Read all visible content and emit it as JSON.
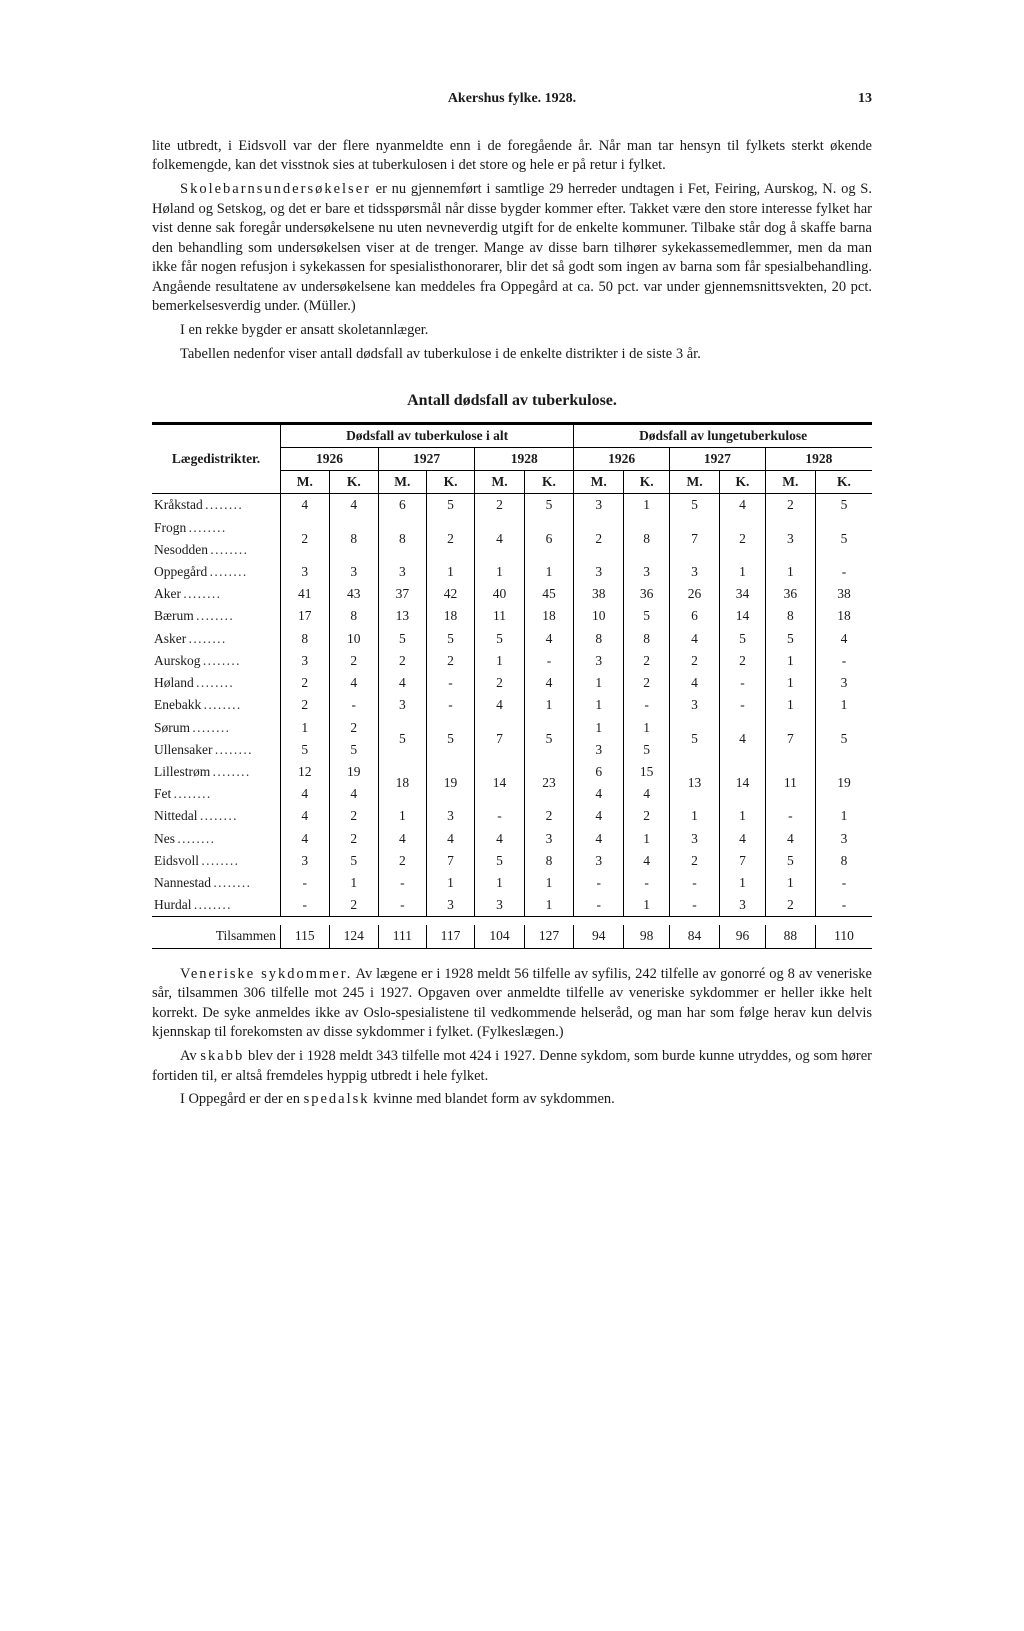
{
  "header": {
    "title": "Akershus fylke. 1928.",
    "page_number": "13"
  },
  "p1": "lite utbredt, i Eidsvoll var der flere nyanmeldte enn i de foregående år. Når man tar hensyn til fylkets sterkt økende folkemengde, kan det visstnok sies at tuberkulosen i det store og hele er på retur i fylket.",
  "p2a": "Skolebarnsundersøkelser",
  "p2b": " er nu gjennemført i samtlige 29 herreder undtagen i Fet, Feiring, Aurskog, N. og S. Høland og Setskog, og det er bare et tidsspørsmål når disse bygder kommer efter. Takket være den store interesse fylket har vist denne sak foregår undersøkelsene nu uten nevneverdig utgift for de enkelte kommuner. Tilbake står dog å skaffe barna den behandling som undersøkelsen viser at de trenger. Mange av disse barn tilhører sykekassemedlemmer, men da man ikke får nogen refusjon i sykekassen for spesialisthonorarer, blir det så godt som ingen av barna som får spesialbehandling. Angående resultatene av undersøkelsene kan meddeles fra Oppegård at ca. 50 pct. var under gjennemsnittsvekten, 20 pct. bemerkelsesverdig under. (Müller.)",
  "p3": "I en rekke bygder er ansatt skoletannlæger.",
  "p4": "Tabellen nedenfor viser antall dødsfall av tuberkulose i de enkelte distrikter i de siste 3 år.",
  "table_title": "Antall dødsfall av tuberkulose.",
  "table": {
    "col_left": "Lægedistrikter.",
    "group_a": "Dødsfall av tuberkulose i alt",
    "group_b": "Dødsfall av lungetuberkulose",
    "years": [
      "1926",
      "1927",
      "1928"
    ],
    "mk": [
      "M.",
      "K."
    ],
    "rows": [
      {
        "name": "Kråkstad",
        "v": [
          "4",
          "4",
          "6",
          "5",
          "2",
          "5",
          "3",
          "1",
          "5",
          "4",
          "2",
          "5"
        ]
      },
      {
        "name": "Frogn",
        "brace_top": true,
        "v_span": [
          "2",
          "8",
          "8",
          "2",
          "4",
          "6",
          "2",
          "8",
          "7",
          "2",
          "3",
          "5"
        ]
      },
      {
        "name": "Nesodden",
        "brace_bot": true
      },
      {
        "name": "Oppegård",
        "v": [
          "3",
          "3",
          "3",
          "1",
          "1",
          "1",
          "3",
          "3",
          "3",
          "1",
          "1",
          "-"
        ]
      },
      {
        "name": "Aker",
        "v": [
          "41",
          "43",
          "37",
          "42",
          "40",
          "45",
          "38",
          "36",
          "26",
          "34",
          "36",
          "38"
        ]
      },
      {
        "name": "Bærum",
        "v": [
          "17",
          "8",
          "13",
          "18",
          "11",
          "18",
          "10",
          "5",
          "6",
          "14",
          "8",
          "18"
        ]
      },
      {
        "name": "Asker",
        "v": [
          "8",
          "10",
          "5",
          "5",
          "5",
          "4",
          "8",
          "8",
          "4",
          "5",
          "5",
          "4"
        ]
      },
      {
        "name": "Aurskog",
        "v": [
          "3",
          "2",
          "2",
          "2",
          "1",
          "-",
          "3",
          "2",
          "2",
          "2",
          "1",
          "-"
        ]
      },
      {
        "name": "Høland",
        "v": [
          "2",
          "4",
          "4",
          "-",
          "2",
          "4",
          "1",
          "2",
          "4",
          "-",
          "1",
          "3"
        ]
      },
      {
        "name": "Enebakk",
        "v": [
          "2",
          "-",
          "3",
          "-",
          "4",
          "1",
          "1",
          "-",
          "3",
          "-",
          "1",
          "1"
        ]
      },
      {
        "name": "Sørum",
        "v2a": [
          "1",
          "2"
        ],
        "brace_top": true,
        "v_span": [
          "5",
          "5",
          "7",
          "5"
        ],
        "v2b": [
          "1",
          "1"
        ],
        "v_span2": [
          "5",
          "4",
          "7",
          "5"
        ]
      },
      {
        "name": "Ullensaker",
        "v2a": [
          "5",
          "5"
        ],
        "brace_bot": true,
        "v2b": [
          "3",
          "5"
        ]
      },
      {
        "name": "Lillestrøm",
        "v2a": [
          "12",
          "19"
        ],
        "brace_top": true,
        "v_span": [
          "18",
          "19",
          "14",
          "23"
        ],
        "v2b": [
          "6",
          "15"
        ],
        "v_span2": [
          "13",
          "14",
          "11",
          "19"
        ]
      },
      {
        "name": "Fet",
        "v2a": [
          "4",
          "4"
        ],
        "brace_bot": true,
        "v2b": [
          "4",
          "4"
        ]
      },
      {
        "name": "Nittedal",
        "v": [
          "4",
          "2",
          "1",
          "3",
          "-",
          "2",
          "4",
          "2",
          "1",
          "1",
          "-",
          "1"
        ]
      },
      {
        "name": "Nes",
        "v": [
          "4",
          "2",
          "4",
          "4",
          "4",
          "3",
          "4",
          "1",
          "3",
          "4",
          "4",
          "3"
        ]
      },
      {
        "name": "Eidsvoll",
        "v": [
          "3",
          "5",
          "2",
          "7",
          "5",
          "8",
          "3",
          "4",
          "2",
          "7",
          "5",
          "8"
        ]
      },
      {
        "name": "Nannestad",
        "v": [
          "-",
          "1",
          "-",
          "1",
          "1",
          "1",
          "-",
          "-",
          "-",
          "1",
          "1",
          "-"
        ]
      },
      {
        "name": "Hurdal",
        "v": [
          "-",
          "2",
          "-",
          "3",
          "3",
          "1",
          "-",
          "1",
          "-",
          "3",
          "2",
          "-"
        ]
      }
    ],
    "total_label": "Tilsammen",
    "totals": [
      "115",
      "124",
      "111",
      "117",
      "104",
      "127",
      "94",
      "98",
      "84",
      "96",
      "88",
      "110"
    ]
  },
  "p5a": "Veneriske sykdommer.",
  "p5b": " Av lægene er i 1928 meldt 56 tilfelle av syfilis, 242 tilfelle av gonorré og 8 av veneriske sår, tilsammen 306 tilfelle mot 245 i 1927. Opgaven over anmeldte tilfelle av veneriske sykdommer er heller ikke helt korrekt. De syke anmeldes ikke av Oslo-spesialistene til vedkommende helseråd, og man har som følge herav kun delvis kjennskap til forekomsten av disse sykdommer i fylket. (Fylkeslægen.)",
  "p6a": "Av ",
  "p6b": "skabb",
  "p6c": " blev der i 1928 meldt 343 tilfelle mot 424 i 1927. Denne sykdom, som burde kunne utryddes, og som hører fortiden til, er altså fremdeles hyppig utbredt i hele fylket.",
  "p7a": "I Oppegård er der en ",
  "p7b": "spedalsk",
  "p7c": " kvinne med blandet form av sykdommen."
}
